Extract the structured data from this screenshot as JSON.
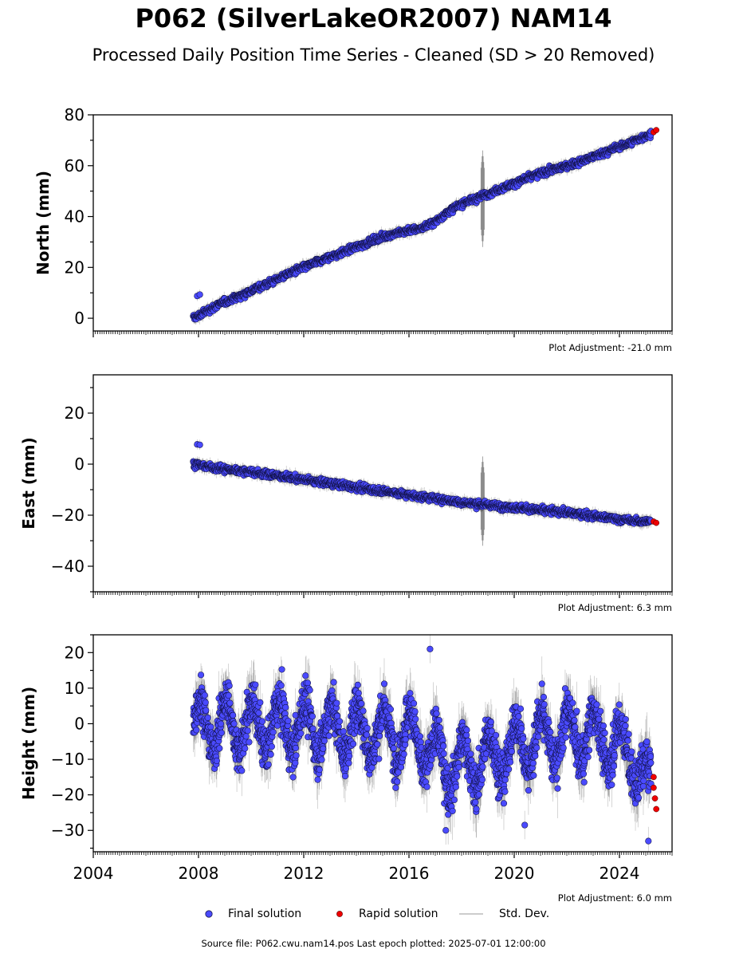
{
  "title": "P062 (SilverLakeOR2007) NAM14",
  "subtitle": "Processed Daily Position Time Series - Cleaned (SD > 20 Removed)",
  "legend": {
    "final_label": "Final solution",
    "rapid_label": "Rapid solution",
    "std_label": "Std. Dev."
  },
  "footer": "Source file: P062.cwu.nam14.pos  Last epoch plotted: 2025-07-01 12:00:00",
  "colors": {
    "final": "#4a4aff",
    "rapid": "#ee0000",
    "std_dev": "#555555",
    "legend_std": "#bbbbbb"
  },
  "chart_data": [
    {
      "type": "scatter",
      "ylabel": "North (mm)",
      "adjustment": "Plot Adjustment: -21.0 mm",
      "xlim": [
        2004.0,
        2026.0
      ],
      "ylim": [
        -5,
        80
      ],
      "yticks": [
        0,
        20,
        40,
        60,
        80
      ],
      "xticks": [
        2004,
        2008,
        2012,
        2016,
        2020,
        2024
      ],
      "show_xticklabels": false,
      "grid": false,
      "series": [
        {
          "name": "Final solution",
          "x": [
            2007.8,
            2008.0,
            2008.5,
            2009.0,
            2009.5,
            2010.0,
            2010.5,
            2011.0,
            2011.5,
            2012.0,
            2012.5,
            2013.0,
            2013.5,
            2014.0,
            2014.5,
            2015.0,
            2015.5,
            2016.0,
            2016.5,
            2017.0,
            2017.5,
            2018.0,
            2018.5,
            2019.0,
            2019.5,
            2020.0,
            2020.5,
            2021.0,
            2021.5,
            2022.0,
            2022.5,
            2023.0,
            2023.5,
            2024.0,
            2024.5,
            2025.2
          ],
          "y": [
            0,
            1,
            4,
            6.5,
            8.5,
            11,
            13,
            15.5,
            18,
            20,
            22,
            24,
            26,
            28,
            30,
            32,
            33.5,
            34.5,
            35.5,
            38,
            42,
            45,
            47,
            49,
            51,
            53,
            55,
            57,
            58.5,
            60,
            61.5,
            63.5,
            65.5,
            67.5,
            69.5,
            72.5
          ]
        },
        {
          "name": "Rapid solution",
          "x": [
            2025.3,
            2025.4
          ],
          "y": [
            73.2,
            74
          ]
        }
      ],
      "std_dev_spike": {
        "x": 2018.8,
        "ymin": 28,
        "ymax": 66
      }
    },
    {
      "type": "scatter",
      "ylabel": "East (mm)",
      "adjustment": "Plot Adjustment: 6.3 mm",
      "xlim": [
        2004.0,
        2026.0
      ],
      "ylim": [
        -50,
        35
      ],
      "yticks": [
        -40,
        -20,
        0,
        20
      ],
      "xticks": [
        2004,
        2008,
        2012,
        2016,
        2020,
        2024
      ],
      "show_xticklabels": false,
      "grid": false,
      "series": [
        {
          "name": "Final solution",
          "x": [
            2007.8,
            2008.5,
            2009.0,
            2009.5,
            2010.0,
            2010.5,
            2011.0,
            2011.5,
            2012.0,
            2012.5,
            2013.0,
            2013.5,
            2014.0,
            2014.5,
            2015.0,
            2015.5,
            2016.0,
            2016.5,
            2017.0,
            2017.5,
            2018.0,
            2018.5,
            2019.0,
            2019.5,
            2020.0,
            2020.5,
            2021.0,
            2021.5,
            2022.0,
            2022.5,
            2023.0,
            2023.5,
            2024.0,
            2024.5,
            2025.2
          ],
          "y": [
            0,
            -1.2,
            -2,
            -2.5,
            -3,
            -3.8,
            -4.5,
            -5.3,
            -6,
            -6.8,
            -7.5,
            -8.3,
            -9,
            -9.8,
            -10.5,
            -11.3,
            -12,
            -12.8,
            -13.5,
            -14.2,
            -15,
            -15.5,
            -16,
            -16.5,
            -17,
            -17.5,
            -18,
            -18.5,
            -19,
            -19.5,
            -20.3,
            -21,
            -21.6,
            -22.2,
            -22.5
          ]
        },
        {
          "name": "Rapid solution",
          "x": [
            2025.3,
            2025.4
          ],
          "y": [
            -22.5,
            -23
          ]
        }
      ],
      "std_dev_spike": {
        "x": 2018.8,
        "ymin": -32,
        "ymax": 3
      }
    },
    {
      "type": "scatter",
      "ylabel": "Height (mm)",
      "adjustment": "Plot Adjustment: 6.0 mm",
      "xlim": [
        2004.0,
        2026.0
      ],
      "ylim": [
        -36,
        25
      ],
      "yticks": [
        -30,
        -20,
        -10,
        0,
        10,
        20
      ],
      "xticks": [
        2004,
        2008,
        2012,
        2016,
        2020,
        2024
      ],
      "xticklabels": [
        "2004",
        "2008",
        "2012",
        "2016",
        "2020",
        "2024"
      ],
      "show_xticklabels": true,
      "grid": false,
      "seasonal": {
        "start": 2007.8,
        "end": 2025.2,
        "amplitude": 7,
        "noise": 4.5,
        "trend": [
          [
            2007.8,
            0
          ],
          [
            2012.0,
            -1
          ],
          [
            2016.0,
            -3
          ],
          [
            2017.5,
            -12
          ],
          [
            2019.0,
            -10
          ],
          [
            2021.0,
            -4
          ],
          [
            2023.0,
            -3
          ],
          [
            2024.5,
            -9
          ],
          [
            2025.2,
            -20
          ]
        ]
      },
      "series": [
        {
          "name": "Final solution",
          "x": [
            2016.8,
            2017.4,
            2020.4,
            2025.1
          ],
          "y": [
            21,
            -30,
            -28.5,
            -33
          ]
        },
        {
          "name": "Rapid solution",
          "x": [
            2025.3,
            2025.3,
            2025.35,
            2025.4
          ],
          "y": [
            -15,
            -18,
            -21,
            -24
          ]
        }
      ]
    }
  ]
}
